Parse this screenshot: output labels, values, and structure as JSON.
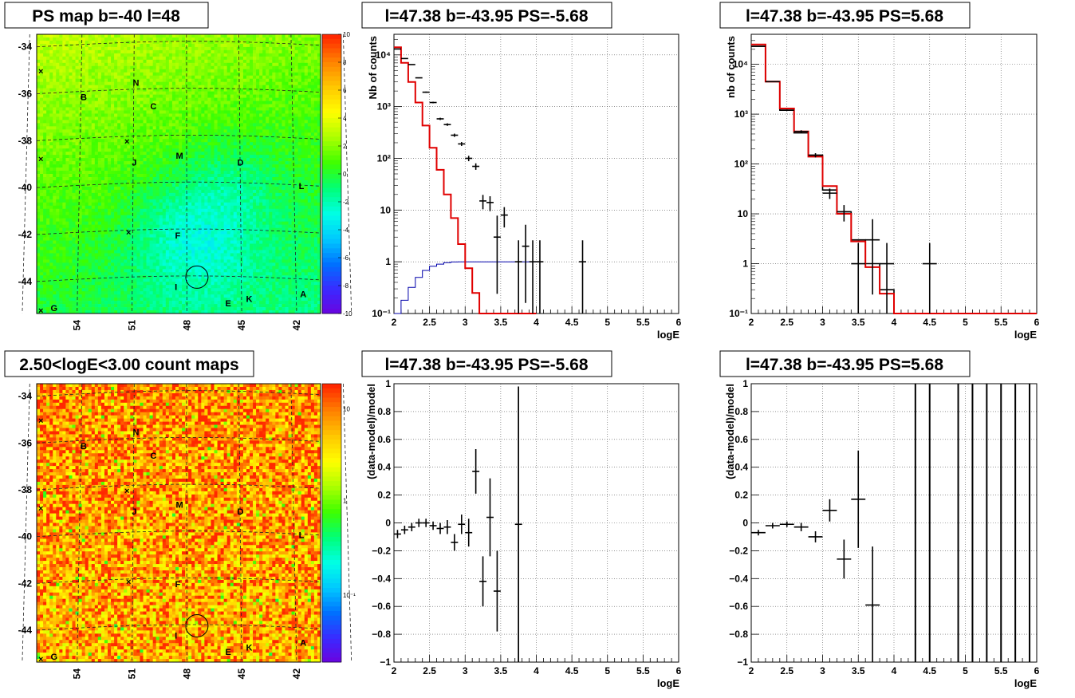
{
  "chart_data": [
    {
      "id": "psmap",
      "type": "heatmap",
      "title": "PS map b=-40 l=48",
      "y_ticks": [
        "-34",
        "-36",
        "-38",
        "-40",
        "-42",
        "-44"
      ],
      "x_ticks": [
        "54",
        "51",
        "48",
        "45",
        "42"
      ],
      "colorbar": {
        "min": -10,
        "max": 10,
        "ticks": [
          "10",
          "8",
          "6",
          "4",
          "2",
          "0",
          "-2",
          "-4",
          "-6",
          "-8",
          "-10"
        ]
      },
      "markers": [
        {
          "label": "N",
          "lon": 50.9,
          "lat": -35.8
        },
        {
          "label": "B",
          "lon": 53.9,
          "lat": -36.4
        },
        {
          "label": "C",
          "lon": 49.9,
          "lat": -36.8
        },
        {
          "label": "M",
          "lon": 48.4,
          "lat": -38.9
        },
        {
          "label": "D",
          "lon": 44.9,
          "lat": -39.2
        },
        {
          "label": "J",
          "lon": 51.0,
          "lat": -39.2
        },
        {
          "label": "L",
          "lon": 41.4,
          "lat": -40.2
        },
        {
          "label": "F",
          "lon": 48.5,
          "lat": -42.3
        },
        {
          "label": "I",
          "lon": 48.6,
          "lat": -44.5
        },
        {
          "label": "A",
          "lon": 41.3,
          "lat": -44.8
        },
        {
          "label": "E",
          "lon": 45.6,
          "lat": -45.2
        },
        {
          "label": "K",
          "lon": 44.4,
          "lat": -45.0
        },
        {
          "label": "G",
          "lon": 55.6,
          "lat": -45.4
        }
      ],
      "circle": {
        "lon": 47.4,
        "lat": -43.95
      }
    },
    {
      "id": "countmap",
      "type": "heatmap",
      "title": "2.50<logE<3.00 count maps",
      "y_ticks": [
        "-34",
        "-36",
        "-38",
        "-40",
        "-42",
        "-44"
      ],
      "x_ticks": [
        "54",
        "51",
        "48",
        "45",
        "42"
      ],
      "colorbar": {
        "log": true,
        "ticks": [
          "10",
          "1",
          "10⁻¹"
        ]
      }
    },
    {
      "id": "spec1",
      "type": "line",
      "title": "l=47.38 b=-43.95 PS=-5.68",
      "xlabel": "logE",
      "ylabel": "Nb of counts",
      "log_y": true,
      "xlim": [
        2,
        6
      ],
      "ylim": [
        0.1,
        25000
      ],
      "x_ticks": [
        "2",
        "2.5",
        "3",
        "3.5",
        "4",
        "4.5",
        "5",
        "5.5",
        "6"
      ],
      "y_ticks": [
        "10⁻¹",
        "1",
        "10",
        "10²",
        "10³",
        "10⁴"
      ],
      "grid": true,
      "model_red": [
        14000,
        7000,
        3000,
        1200,
        430,
        160,
        60,
        20,
        7,
        2.2,
        0.75,
        0.25,
        0.1,
        0.1,
        0.1,
        0.1,
        0.1,
        0.1,
        0.1,
        0.1
      ],
      "model_blue": [
        0.1,
        0.18,
        0.32,
        0.5,
        0.68,
        0.82,
        0.9,
        0.96,
        0.99,
        1,
        1,
        1,
        1,
        1,
        1,
        1,
        1,
        1,
        1,
        1
      ],
      "points": [
        {
          "x": 2.05,
          "y": 13000
        },
        {
          "x": 2.15,
          "y": 8500
        },
        {
          "x": 2.25,
          "y": 6500
        },
        {
          "x": 2.35,
          "y": 3600
        },
        {
          "x": 2.45,
          "y": 1900
        },
        {
          "x": 2.55,
          "y": 1200
        },
        {
          "x": 2.65,
          "y": 580
        },
        {
          "x": 2.75,
          "y": 450
        },
        {
          "x": 2.85,
          "y": 280
        },
        {
          "x": 2.95,
          "y": 190
        },
        {
          "x": 3.05,
          "y": 100
        },
        {
          "x": 3.15,
          "y": 70
        },
        {
          "x": 3.25,
          "y": 15
        },
        {
          "x": 3.35,
          "y": 14
        },
        {
          "x": 3.45,
          "y": 3
        },
        {
          "x": 3.55,
          "y": 8
        },
        {
          "x": 3.75,
          "y": 1
        },
        {
          "x": 3.85,
          "y": 2
        },
        {
          "x": 3.95,
          "y": 1
        },
        {
          "x": 4.05,
          "y": 1
        },
        {
          "x": 4.65,
          "y": 1
        }
      ]
    },
    {
      "id": "spec2",
      "type": "line",
      "title": "l=47.38 b=-43.95 PS=5.68",
      "xlabel": "logE",
      "ylabel": "nb of counts",
      "log_y": true,
      "xlim": [
        2,
        6
      ],
      "ylim": [
        0.1,
        40000
      ],
      "x_ticks": [
        "2",
        "2.5",
        "3",
        "3.5",
        "4",
        "4.5",
        "5",
        "5.5",
        "6"
      ],
      "y_ticks": [
        "10⁻¹",
        "1",
        "10",
        "10²",
        "10³",
        "10⁴"
      ],
      "grid": true,
      "model_red": [
        25000,
        4500,
        1300,
        450,
        140,
        36,
        10,
        2.8,
        0.85,
        0.25,
        0.1,
        0.1,
        0.1,
        0.1,
        0.1,
        0.1,
        0.1,
        0.1,
        0.1,
        0.1
      ],
      "model_black": [
        23000,
        4500,
        1200,
        420,
        150,
        30,
        11,
        3,
        1,
        0.3,
        0.1,
        0.1,
        0.1,
        0.1,
        0.1,
        0.1,
        0.1,
        0.1,
        0.1,
        0.1
      ],
      "points": [
        {
          "x": 2.1,
          "y": 23000
        },
        {
          "x": 2.3,
          "y": 4500
        },
        {
          "x": 2.5,
          "y": 1200
        },
        {
          "x": 2.7,
          "y": 450
        },
        {
          "x": 2.9,
          "y": 150
        },
        {
          "x": 3.1,
          "y": 26
        },
        {
          "x": 3.3,
          "y": 11
        },
        {
          "x": 3.5,
          "y": 1
        },
        {
          "x": 3.7,
          "y": 3
        },
        {
          "x": 3.9,
          "y": 1
        },
        {
          "x": 4.5,
          "y": 1
        }
      ]
    },
    {
      "id": "resid1",
      "type": "scatter",
      "title": "l=47.38 b=-43.95 PS=-5.68",
      "xlabel": "logE",
      "ylabel": "(data-model)/model",
      "xlim": [
        2,
        6
      ],
      "ylim": [
        -1,
        1
      ],
      "x_ticks": [
        "2",
        "2.5",
        "3",
        "3.5",
        "4",
        "4.5",
        "5",
        "5.5",
        "6"
      ],
      "y_ticks": [
        "−1",
        "−0.8",
        "−0.6",
        "−0.4",
        "−0.2",
        "0",
        "0.2",
        "0.4",
        "0.6",
        "0.8",
        "1"
      ],
      "grid": true,
      "points": [
        {
          "x": 2.05,
          "y": -0.08,
          "e": 0.03
        },
        {
          "x": 2.15,
          "y": -0.05,
          "e": 0.03
        },
        {
          "x": 2.25,
          "y": -0.03,
          "e": 0.03
        },
        {
          "x": 2.35,
          "y": 0.0,
          "e": 0.03
        },
        {
          "x": 2.45,
          "y": 0.0,
          "e": 0.03
        },
        {
          "x": 2.55,
          "y": -0.02,
          "e": 0.03
        },
        {
          "x": 2.65,
          "y": -0.04,
          "e": 0.04
        },
        {
          "x": 2.75,
          "y": -0.03,
          "e": 0.05
        },
        {
          "x": 2.85,
          "y": -0.14,
          "e": 0.06
        },
        {
          "x": 2.95,
          "y": -0.01,
          "e": 0.07
        },
        {
          "x": 3.05,
          "y": -0.07,
          "e": 0.1
        },
        {
          "x": 3.15,
          "y": 0.37,
          "e": 0.16
        },
        {
          "x": 3.25,
          "y": -0.42,
          "e": 0.18
        },
        {
          "x": 3.35,
          "y": 0.04,
          "e": 0.28
        },
        {
          "x": 3.45,
          "y": -0.49,
          "e": 0.29
        },
        {
          "x": 3.75,
          "y": -0.01,
          "e": 0.99
        }
      ]
    },
    {
      "id": "resid2",
      "type": "scatter",
      "title": "l=47.38 b=-43.95 PS=5.68",
      "xlabel": "logE",
      "ylabel": "(data-model)/model",
      "xlim": [
        2,
        6
      ],
      "ylim": [
        -1,
        1
      ],
      "x_ticks": [
        "2",
        "2.5",
        "3",
        "3.5",
        "4",
        "4.5",
        "5",
        "5.5",
        "6"
      ],
      "y_ticks": [
        "−1",
        "−0.8",
        "−0.6",
        "−0.4",
        "−0.2",
        "0",
        "0.2",
        "0.4",
        "0.6",
        "0.8",
        "1"
      ],
      "grid": true,
      "points": [
        {
          "x": 2.1,
          "y": -0.07,
          "e": 0.02
        },
        {
          "x": 2.3,
          "y": -0.02,
          "e": 0.02
        },
        {
          "x": 2.5,
          "y": -0.01,
          "e": 0.02
        },
        {
          "x": 2.7,
          "y": -0.03,
          "e": 0.03
        },
        {
          "x": 2.9,
          "y": -0.1,
          "e": 0.04
        },
        {
          "x": 3.1,
          "y": 0.09,
          "e": 0.08
        },
        {
          "x": 3.3,
          "y": -0.26,
          "e": 0.14
        },
        {
          "x": 3.5,
          "y": 0.17,
          "e": 0.35
        },
        {
          "x": 3.7,
          "y": -0.59,
          "e": 0.42
        }
      ],
      "vertical_bars": [
        4.3,
        4.5,
        4.9,
        5.1,
        5.3,
        5.5,
        5.7,
        5.9
      ]
    }
  ]
}
